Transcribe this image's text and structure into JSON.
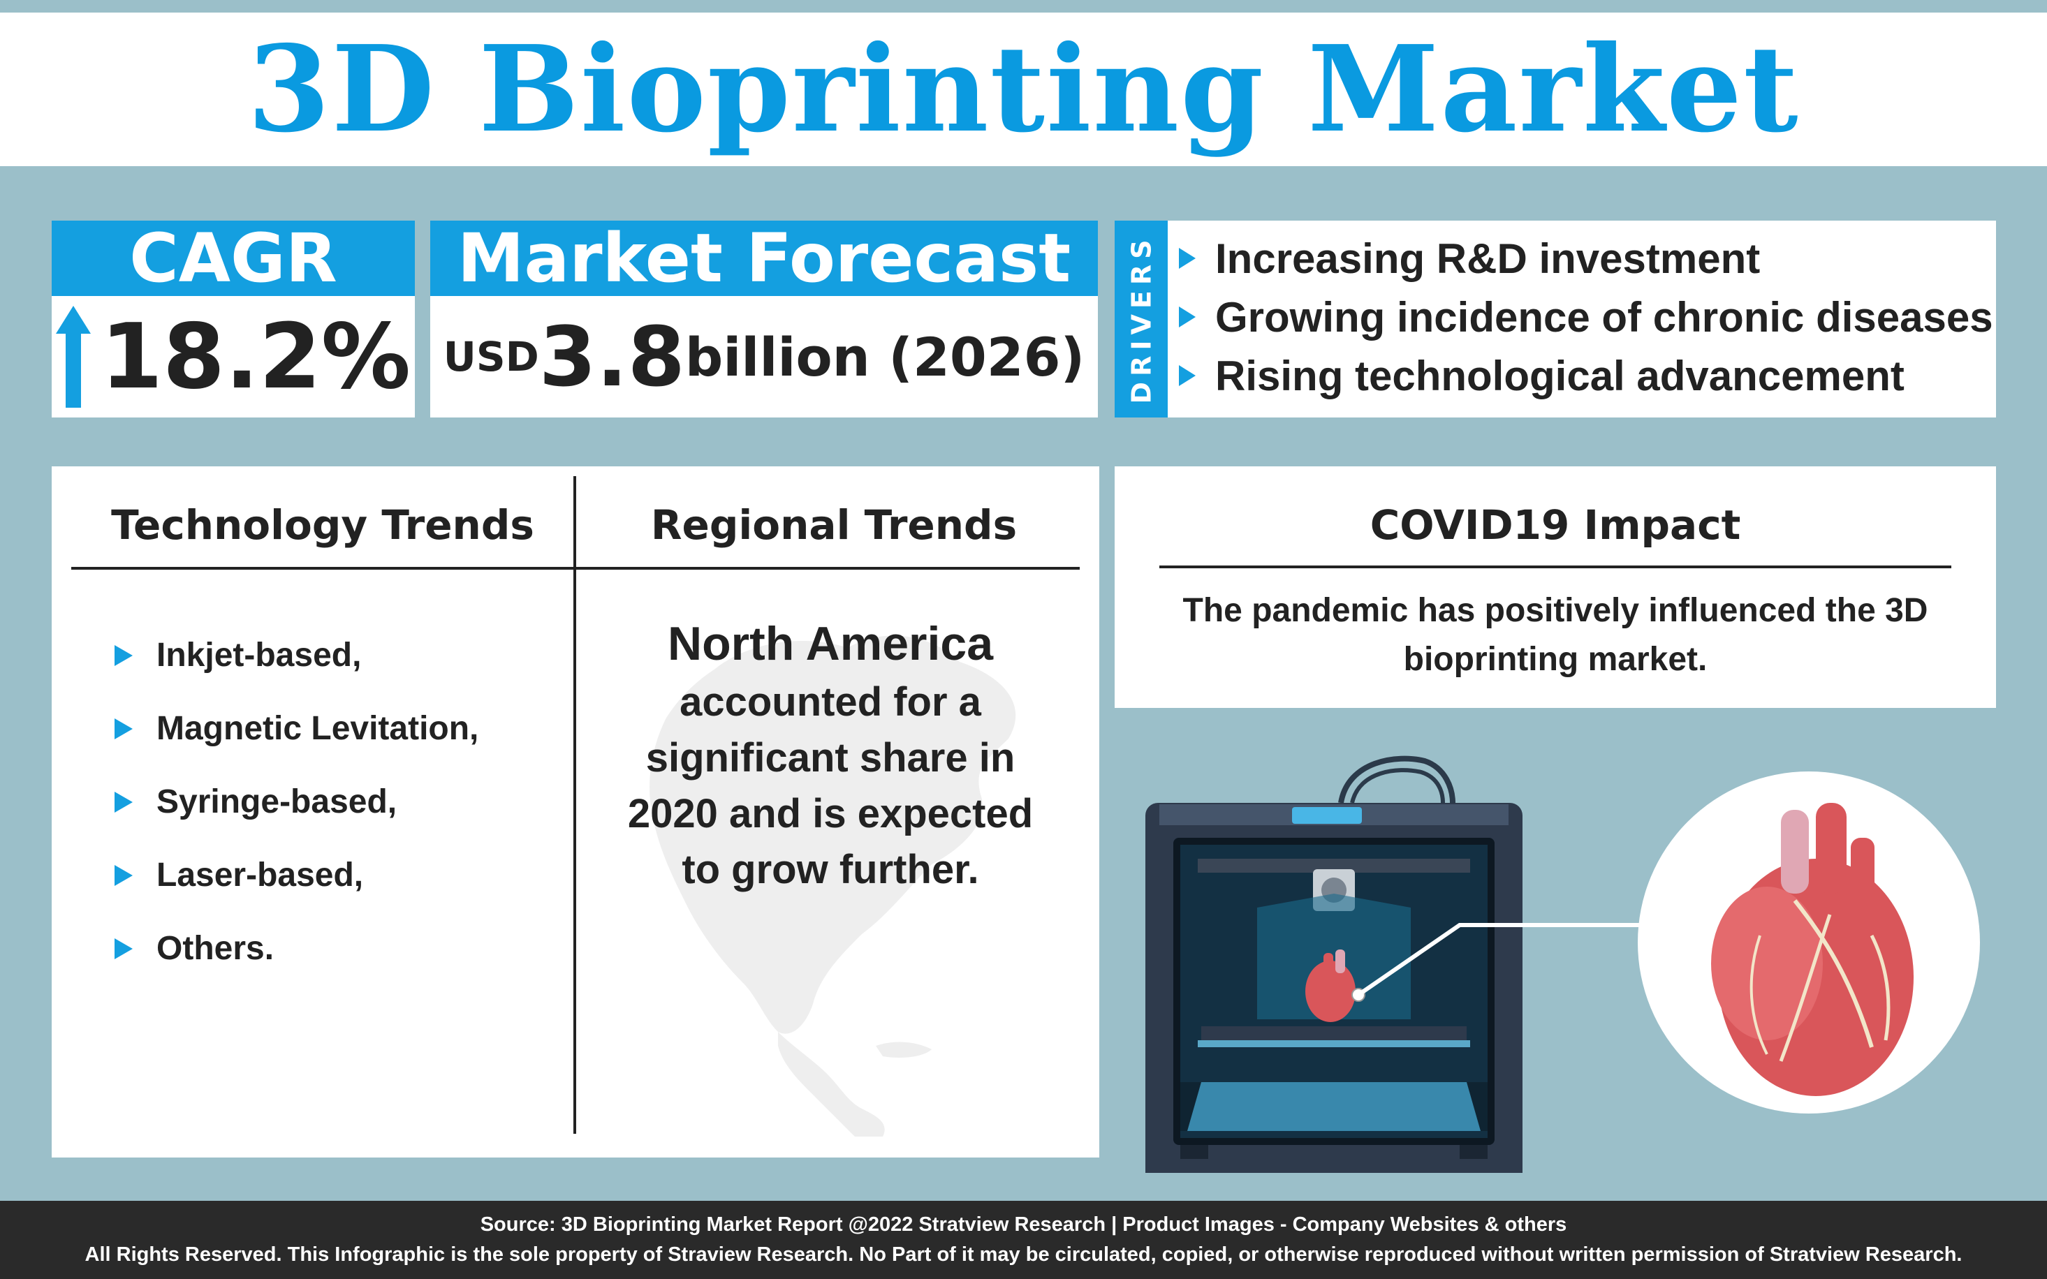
{
  "header": {
    "title": "3D Bioprinting Market"
  },
  "cagr": {
    "label": "CAGR",
    "value": "18.2%",
    "icon": "arrow-up-icon"
  },
  "forecast": {
    "label": "Market Forecast",
    "currency": "USD",
    "number": "3.8",
    "rest": "billion (2026)"
  },
  "drivers": {
    "label": "DRIVERS",
    "items": [
      "Increasing R&D investment",
      "Growing incidence of chronic diseases",
      "Rising technological advancement"
    ]
  },
  "technology_trends": {
    "heading": "Technology Trends",
    "items": [
      "Inkjet-based,",
      "Magnetic Levitation,",
      "Syringe-based,",
      "Laser-based,",
      "Others."
    ]
  },
  "regional_trends": {
    "heading": "Regional Trends",
    "headline": "North America",
    "body": "accounted for a significant share in 2020 and is expected to grow further."
  },
  "covid": {
    "heading": "COVID19 Impact",
    "text": "The pandemic has positively influenced the 3D bioprinting market."
  },
  "footer": {
    "source": "Source: 3D Bioprinting Market Report @2022 Stratview Research | Product Images - Company Websites & others",
    "rights": "All Rights Reserved. This Infographic is the sole property of Straview Research. No Part of it may be circulated, copied, or otherwise reproduced without written permission of Stratview Research."
  },
  "colors": {
    "background": "#9bbfc9",
    "accent": "#149fe0",
    "title": "#0a9ae0",
    "footer": "#2a2a2a"
  }
}
